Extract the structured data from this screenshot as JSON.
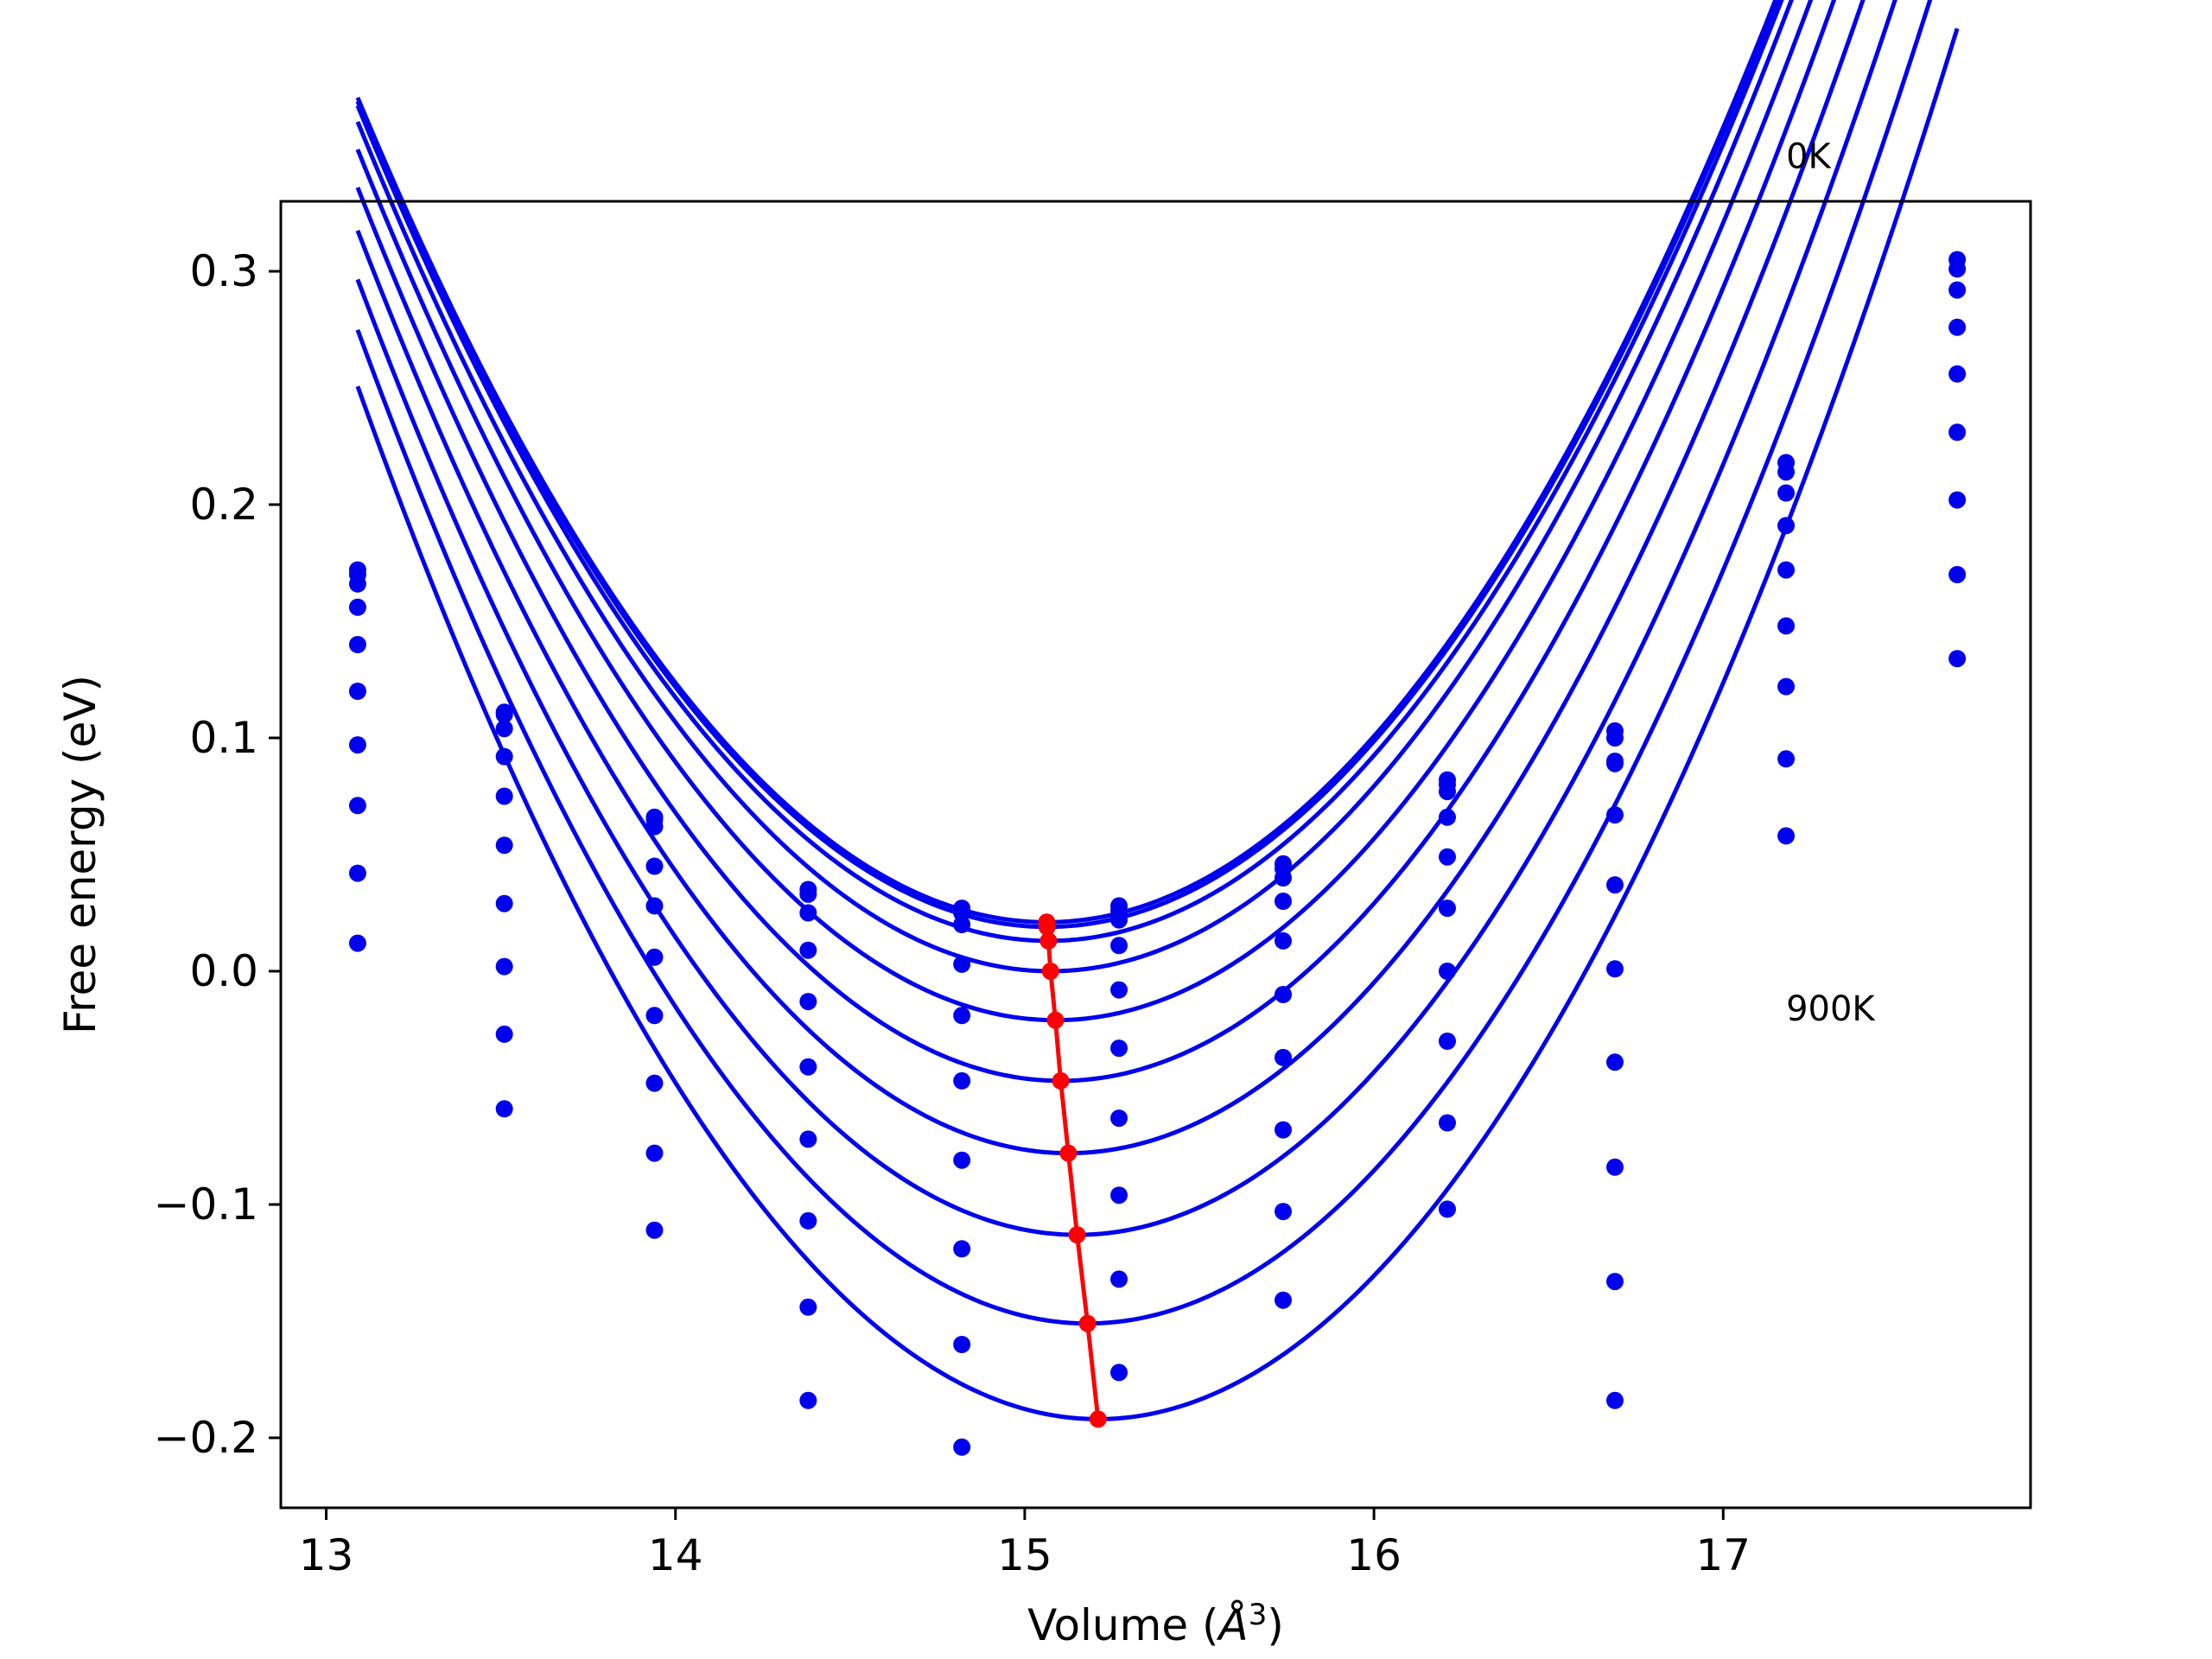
{
  "chart_data": {
    "type": "scatter",
    "title": "",
    "xlabel_main": "Volume (",
    "xlabel_symbol": "Å",
    "xlabel_exp": "3",
    "xlabel_close": ")",
    "ylabel": "Free energy (eV)",
    "xlim": [
      12.87,
      17.88
    ],
    "ylim": [
      -0.23,
      0.33
    ],
    "x_ticks": [
      13,
      14,
      15,
      16,
      17
    ],
    "x_tick_labels": [
      "13",
      "14",
      "15",
      "16",
      "17"
    ],
    "y_ticks": [
      -0.2,
      -0.1,
      0.0,
      0.1,
      0.2,
      0.3
    ],
    "y_tick_labels": [
      "−0.2",
      "−0.1",
      "0.0",
      "0.1",
      "0.2",
      "0.3"
    ],
    "annotations": [
      {
        "text": "0K",
        "x": 17.18,
        "y": 0.3495
      },
      {
        "text": "900K",
        "x": 17.18,
        "y": -0.0159
      }
    ],
    "colors": {
      "series": "#0000ee",
      "minima": "#ff0000",
      "axes": "#000000"
    },
    "volumes": [
      13.09,
      13.51,
      13.94,
      14.38,
      14.82,
      15.27,
      15.74,
      16.21,
      16.69,
      17.18,
      17.67
    ],
    "series": [
      {
        "values": [
          0.172,
          0.111,
          0.066,
          0.035,
          0.027,
          0.028,
          0.046,
          0.082,
          0.103,
          0.218,
          0.305
        ],
        "fit_a": 0.0908,
        "fit_v0": 15.063,
        "fit_e0": 0.021
      },
      {
        "values": [
          0.17,
          0.11,
          0.065,
          0.033,
          0.025,
          0.026,
          0.044,
          0.08,
          0.1,
          0.214,
          0.301
        ],
        "fit_a": 0.0908,
        "fit_v0": 15.064,
        "fit_e0": 0.019
      },
      {
        "values": [
          0.166,
          0.104,
          0.062,
          0.025,
          0.02,
          0.022,
          0.04,
          0.077,
          0.09,
          0.205,
          0.292
        ],
        "fit_a": 0.0915,
        "fit_v0": 15.068,
        "fit_e0": 0.013
      },
      {
        "values": [
          0.156,
          0.092,
          0.045,
          0.009,
          0.003,
          0.011,
          0.03,
          0.066,
          0.089,
          0.191,
          0.276
        ],
        "fit_a": 0.0925,
        "fit_v0": 15.074,
        "fit_e0": 0.0
      },
      {
        "values": [
          0.14,
          0.075,
          0.028,
          -0.013,
          -0.019,
          -0.008,
          0.013,
          0.049,
          0.067,
          0.172,
          0.256
        ],
        "fit_a": 0.0935,
        "fit_v0": 15.088,
        "fit_e0": -0.021
      },
      {
        "values": [
          0.12,
          0.054,
          0.006,
          -0.041,
          -0.047,
          -0.033,
          -0.01,
          0.027,
          0.037,
          0.148,
          0.231
        ],
        "fit_a": 0.0945,
        "fit_v0": 15.103,
        "fit_e0": -0.047
      },
      {
        "values": [
          0.097,
          0.029,
          -0.019,
          -0.072,
          -0.081,
          -0.063,
          -0.037,
          0.0,
          0.001,
          0.122,
          0.202
        ],
        "fit_a": 0.0955,
        "fit_v0": 15.125,
        "fit_e0": -0.078
      },
      {
        "values": [
          0.071,
          0.002,
          -0.048,
          -0.107,
          -0.119,
          -0.096,
          -0.068,
          -0.03,
          -0.039,
          0.091,
          0.17
        ],
        "fit_a": 0.0965,
        "fit_v0": 15.15,
        "fit_e0": -0.113
      },
      {
        "values": [
          0.042,
          -0.027,
          -0.078,
          -0.144,
          -0.16,
          -0.132,
          -0.103,
          -0.065,
          -0.084,
          0.058,
          0.134
        ],
        "fit_a": 0.0975,
        "fit_v0": 15.18,
        "fit_e0": -0.151
      },
      {
        "values": [
          0.012,
          -0.059,
          -0.111,
          -0.184,
          -0.204,
          -0.172,
          -0.141,
          -0.102,
          -0.133,
          null,
          null
        ],
        "fit_a": 0.0985,
        "fit_v0": 15.21,
        "fit_e0": -0.192
      }
    ],
    "extra_points": [
      {
        "x": 16.69,
        "y": -0.184
      }
    ],
    "minima": [
      {
        "x": 15.063,
        "y": 0.021
      },
      {
        "x": 15.064,
        "y": 0.019
      },
      {
        "x": 15.068,
        "y": 0.013
      },
      {
        "x": 15.074,
        "y": 0.0
      },
      {
        "x": 15.088,
        "y": -0.021
      },
      {
        "x": 15.103,
        "y": -0.047
      },
      {
        "x": 15.125,
        "y": -0.078
      },
      {
        "x": 15.15,
        "y": -0.113
      },
      {
        "x": 15.18,
        "y": -0.151
      },
      {
        "x": 15.21,
        "y": -0.192
      }
    ]
  }
}
